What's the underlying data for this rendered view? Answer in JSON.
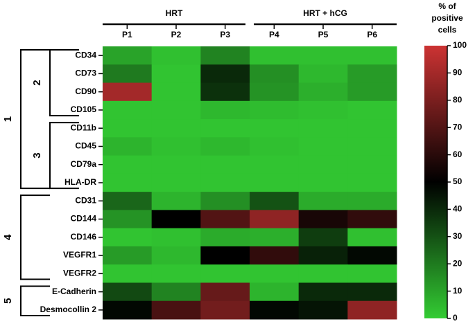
{
  "chart_data": {
    "type": "heatmap",
    "column_groups": [
      "HRT",
      "HRT + hCG"
    ],
    "x_categories": [
      "P1",
      "P2",
      "P3",
      "P4",
      "P5",
      "P6"
    ],
    "y_categories": [
      "CD34",
      "CD73",
      "CD90",
      "CD105",
      "CD11b",
      "CD45",
      "CD79a",
      "HLA-DR",
      "CD31",
      "CD144",
      "CD146",
      "VEGFR1",
      "VEGFR2",
      "E-Cadherin",
      "Desmocollin 2"
    ],
    "row_groups": [
      "1",
      "2",
      "3",
      "4",
      "5"
    ],
    "values": [
      [
        10,
        3,
        18,
        3,
        3,
        3
      ],
      [
        20,
        2,
        40,
        15,
        5,
        12
      ],
      [
        90,
        2,
        38,
        14,
        7,
        12
      ],
      [
        2,
        2,
        5,
        4,
        3,
        2
      ],
      [
        2,
        2,
        2,
        2,
        2,
        2
      ],
      [
        6,
        3,
        5,
        3,
        2,
        2
      ],
      [
        2,
        2,
        2,
        2,
        2,
        2
      ],
      [
        2,
        2,
        2,
        2,
        2,
        2
      ],
      [
        25,
        6,
        15,
        30,
        8,
        8
      ],
      [
        14,
        50,
        70,
        85,
        56,
        62
      ],
      [
        2,
        3,
        8,
        7,
        35,
        3
      ],
      [
        12,
        5,
        50,
        62,
        42,
        48
      ],
      [
        2,
        2,
        2,
        2,
        2,
        2
      ],
      [
        32,
        18,
        75,
        6,
        40,
        40
      ],
      [
        48,
        68,
        78,
        48,
        45,
        85
      ]
    ],
    "colorbar_title": [
      "% of",
      "positive",
      "cells"
    ],
    "zlim": [
      0,
      100
    ],
    "zticks": [
      0,
      10,
      20,
      30,
      40,
      50,
      60,
      70,
      80,
      90,
      100
    ],
    "colors": [
      "#33cc33",
      "#000000",
      "#cc3333"
    ]
  }
}
